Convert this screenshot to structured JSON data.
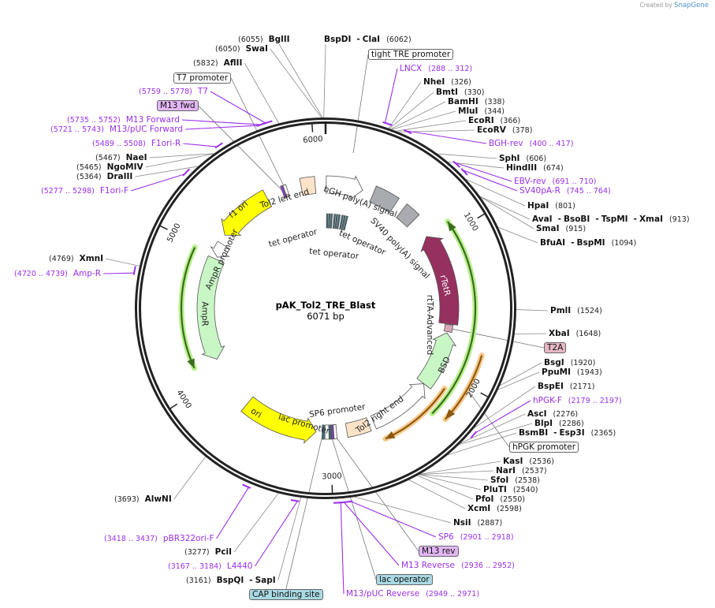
{
  "plasmid": {
    "name": "pAK_Tol2_TRE_Blast",
    "length_label": "6071 bp",
    "length": 6071
  },
  "credit": {
    "prefix": "Created by",
    "brand": "SnapGene"
  },
  "ticks": [
    {
      "bp": 1000,
      "label": "1000"
    },
    {
      "bp": 2000,
      "label": "2000"
    },
    {
      "bp": 3000,
      "label": "3000"
    },
    {
      "bp": 4000,
      "label": "4000"
    },
    {
      "bp": 5000,
      "label": "5000"
    },
    {
      "bp": 6000,
      "label": "6000"
    }
  ],
  "colors": {
    "backbone": "#222222",
    "primer": "#9b30e8",
    "leader": "#8a8a8a",
    "orf": "#3b6b1d",
    "orf_halo": "#b6f08a",
    "orange": "#8a5a12",
    "orange_halo": "#f9c88a"
  },
  "enzymes": [
    {
      "names": [
        "BglII"
      ],
      "site": 6055
    },
    {
      "names": [
        "BspDI",
        "ClaI"
      ],
      "site": 6062
    },
    {
      "names": [
        "SwaI"
      ],
      "site": 6050
    },
    {
      "names": [
        "AflII"
      ],
      "site": 5832
    },
    {
      "names": [
        "NheI"
      ],
      "site": 326
    },
    {
      "names": [
        "BmtI"
      ],
      "site": 330
    },
    {
      "names": [
        "BamHI"
      ],
      "site": 338
    },
    {
      "names": [
        "MluI"
      ],
      "site": 344
    },
    {
      "names": [
        "EcoRI"
      ],
      "site": 366
    },
    {
      "names": [
        "EcoRV"
      ],
      "site": 378
    },
    {
      "names": [
        "SphI"
      ],
      "site": 606
    },
    {
      "names": [
        "HindIII"
      ],
      "site": 674
    },
    {
      "names": [
        "HpaI"
      ],
      "site": 801
    },
    {
      "names": [
        "AvaI",
        "BsoBI",
        "TspMI",
        "XmaI"
      ],
      "site": 913
    },
    {
      "names": [
        "SmaI"
      ],
      "site": 915
    },
    {
      "names": [
        "BfuAI",
        "BspMI"
      ],
      "site": 1094
    },
    {
      "names": [
        "PmlI"
      ],
      "site": 1524
    },
    {
      "names": [
        "XbaI"
      ],
      "site": 1648
    },
    {
      "names": [
        "BsgI"
      ],
      "site": 1920
    },
    {
      "names": [
        "PpuMI"
      ],
      "site": 1943
    },
    {
      "names": [
        "BspEI"
      ],
      "site": 2171
    },
    {
      "names": [
        "AscI"
      ],
      "site": 2276
    },
    {
      "names": [
        "BlpI"
      ],
      "site": 2286
    },
    {
      "names": [
        "BsmBI",
        "Esp3I"
      ],
      "site": 2365
    },
    {
      "names": [
        "KasI"
      ],
      "site": 2536
    },
    {
      "names": [
        "NarI"
      ],
      "site": 2537
    },
    {
      "names": [
        "SfoI"
      ],
      "site": 2538
    },
    {
      "names": [
        "PluTI"
      ],
      "site": 2540
    },
    {
      "names": [
        "PfoI"
      ],
      "site": 2550
    },
    {
      "names": [
        "XcmI"
      ],
      "site": 2598
    },
    {
      "names": [
        "NsiI"
      ],
      "site": 2887
    },
    {
      "names": [
        "BspQI",
        "SapI"
      ],
      "site": 3161
    },
    {
      "names": [
        "PciI"
      ],
      "site": 3277
    },
    {
      "names": [
        "AlwNI"
      ],
      "site": 3693
    },
    {
      "names": [
        "XmnI"
      ],
      "site": 4769
    },
    {
      "names": [
        "DraIII"
      ],
      "site": 5364
    },
    {
      "names": [
        "NgoMIV"
      ],
      "site": 5465
    },
    {
      "names": [
        "NaeI"
      ],
      "site": 5467
    }
  ],
  "primers": [
    {
      "name": "LNCX",
      "range": "288 .. 312",
      "start": 288,
      "end": 312
    },
    {
      "name": "BGH-rev",
      "range": "400 .. 417",
      "start": 400,
      "end": 417
    },
    {
      "name": "EBV-rev",
      "range": "691 .. 710",
      "start": 691,
      "end": 710
    },
    {
      "name": "SV40pA-R",
      "range": "745 .. 764",
      "start": 745,
      "end": 764
    },
    {
      "name": "hPGK-F",
      "range": "2179 .. 2197",
      "start": 2179,
      "end": 2197
    },
    {
      "name": "SP6",
      "range": "2901 .. 2918",
      "start": 2901,
      "end": 2918
    },
    {
      "name": "M13 Reverse",
      "range": "2936 .. 2952",
      "start": 2936,
      "end": 2952
    },
    {
      "name": "M13/pUC Reverse",
      "range": "2949 .. 2971",
      "start": 2949,
      "end": 2971
    },
    {
      "name": "L4440",
      "range": "3167 .. 3184",
      "start": 3167,
      "end": 3184
    },
    {
      "name": "pBR322ori-F",
      "range": "3418 .. 3437",
      "start": 3418,
      "end": 3437
    },
    {
      "name": "Amp-R",
      "range": "4720 .. 4739",
      "start": 4720,
      "end": 4739
    },
    {
      "name": "F1ori-F",
      "range": "5277 .. 5298",
      "start": 5277,
      "end": 5298
    },
    {
      "name": "F1ori-R",
      "range": "5489 .. 5508",
      "start": 5489,
      "end": 5508
    },
    {
      "name": "M13/pUC Forward",
      "range": "5721 .. 5743",
      "start": 5721,
      "end": 5743
    },
    {
      "name": "M13 Forward",
      "range": "5735 .. 5752",
      "start": 5735,
      "end": 5752
    },
    {
      "name": "T7",
      "range": "5759 .. 5778",
      "start": 5759,
      "end": 5778
    }
  ],
  "features": [
    {
      "name": "tight TRE promoter",
      "segments": [],
      "site": 170,
      "strand": 0,
      "colors": [
        "#ffffff"
      ]
    },
    {
      "name": "tet operator",
      "segments": [
        [
          10,
          80
        ]
      ],
      "strand": 0,
      "colors": [
        "#2e6f7e"
      ]
    },
    {
      "name": "tet operator",
      "segments": [
        [
          88,
          160
        ]
      ],
      "strand": 0,
      "colors": [
        "#2e6f7e"
      ]
    },
    {
      "name": "tet operator",
      "segments": [
        [
          168,
          240
        ]
      ],
      "strand": 0,
      "colors": [
        "#2e6f7e"
      ]
    },
    {
      "name": "bGH poly(A) signal",
      "segments": [
        [
          5,
          295
        ]
      ],
      "strand": 1,
      "colors": [
        "#ffffff"
      ]
    },
    {
      "name": "SV40 poly(A) signal",
      "segments": [
        [
          380,
          570
        ],
        [
          640,
          760
        ]
      ],
      "strand": 0,
      "colors": [
        "#a8abb0",
        "#a8abb0"
      ]
    },
    {
      "name": "rTetR",
      "segments": [
        [
          920,
          1640
        ]
      ],
      "strand": -1,
      "colors": [
        "#96305e"
      ]
    },
    {
      "name": "T2A",
      "segments": [
        [
          1645,
          1700
        ]
      ],
      "strand": 0,
      "colors": [
        "#d8a8b8"
      ]
    },
    {
      "name": "BSD",
      "segments": [
        [
          1710,
          2150
        ]
      ],
      "strand": -1,
      "colors": [
        "#c8f7c5"
      ]
    },
    {
      "name": "Tol2 right end",
      "segments": [
        [
          2150,
          2650
        ],
        [
          2690,
          2870
        ]
      ],
      "strand": -1,
      "colors": [
        "#ffffff",
        "#fde3c8"
      ]
    },
    {
      "name": "SP6 promoter",
      "segments": [
        [
          2950,
          2972
        ]
      ],
      "strand": 0,
      "colors": [
        "#ffffff"
      ]
    },
    {
      "name": "M13 rev",
      "segments": [
        [
          2975,
          2990
        ]
      ],
      "strand": 0,
      "colors": [
        "#8c3cc8"
      ]
    },
    {
      "name": "lac operator",
      "segments": [
        [
          2993,
          3008
        ]
      ],
      "strand": 0,
      "colors": [
        "#2e6f7e"
      ]
    },
    {
      "name": "lac promoter",
      "segments": [
        [
          3010,
          3040
        ]
      ],
      "strand": 0,
      "colors": [
        "#ffffff"
      ]
    },
    {
      "name": "CAP binding site",
      "segments": [
        [
          3045,
          3062
        ]
      ],
      "strand": 0,
      "colors": [
        "#2e6f7e"
      ]
    },
    {
      "name": "ori",
      "segments": [
        [
          3110,
          3700
        ]
      ],
      "strand": -1,
      "colors": [
        "#ffff00"
      ]
    },
    {
      "name": "AmpR",
      "segments": [
        [
          4130,
          4960
        ]
      ],
      "strand": -1,
      "colors": [
        "#c8f7c5"
      ]
    },
    {
      "name": "AmpR promoter",
      "segments": [
        [
          4980,
          5090
        ]
      ],
      "strand": -1,
      "colors": [
        "#ffffff"
      ]
    },
    {
      "name": "f1 ori",
      "segments": [
        [
          5160,
          5600
        ]
      ],
      "strand": -1,
      "colors": [
        "#ffff00"
      ]
    },
    {
      "name": "T7 promoter",
      "segments": [
        [
          5748,
          5770
        ]
      ],
      "strand": 0,
      "colors": [
        "#ffffff"
      ]
    },
    {
      "name": "M13 fwd",
      "segments": [
        [
          5728,
          5745
        ]
      ],
      "strand": 0,
      "colors": [
        "#8c3cc8"
      ]
    },
    {
      "name": "Tol2 left end",
      "segments": [
        [
          5880,
          5990
        ]
      ],
      "strand": 0,
      "colors": [
        "#fde3c8"
      ]
    },
    {
      "name": "rtTA-Advanced",
      "segments": [
        [
          920,
          2270
        ]
      ],
      "strand": -1,
      "colors": [
        "#3b6b1d"
      ]
    },
    {
      "name": "hPGK promoter",
      "segments": [
        [
          1800,
          2240
        ],
        [
          2090,
          2620
        ]
      ],
      "strand": 1,
      "colors": [
        "#8a5a12",
        "#8a5a12"
      ]
    }
  ],
  "orfs": [
    {
      "start": 4140,
      "end": 4975,
      "strand": -1
    }
  ]
}
